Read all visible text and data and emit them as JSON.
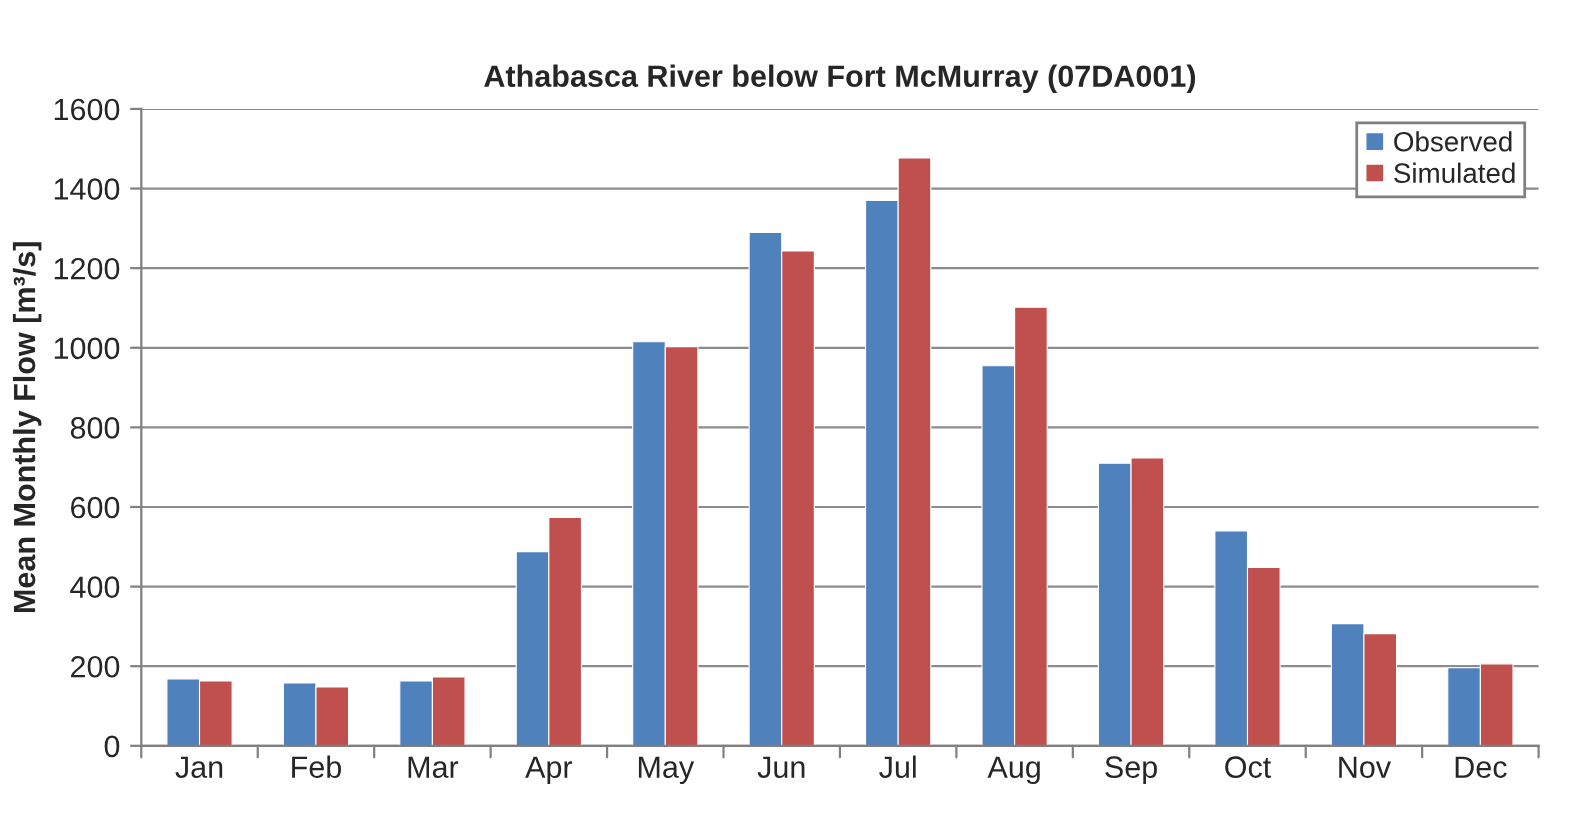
{
  "chart_data": {
    "type": "bar",
    "title": "Athabasca River below Fort McMurray (07DA001)",
    "ylabel": "Mean Monthly Flow [m³/s]",
    "categories": [
      "Jan",
      "Feb",
      "Mar",
      "Apr",
      "May",
      "Jun",
      "Jul",
      "Aug",
      "Sep",
      "Oct",
      "Nov",
      "Dec"
    ],
    "series": [
      {
        "name": "Observed",
        "color": "#4f81bd",
        "values": [
          168,
          158,
          163,
          488,
          1015,
          1290,
          1370,
          955,
          710,
          540,
          307,
          196
        ]
      },
      {
        "name": "Simulated",
        "color": "#c0504d",
        "values": [
          163,
          148,
          173,
          574,
          1003,
          1243,
          1477,
          1102,
          723,
          448,
          282,
          206
        ]
      }
    ],
    "ylim": [
      0,
      1600
    ],
    "yticks": [
      0,
      200,
      400,
      600,
      800,
      1000,
      1200,
      1400,
      1600
    ],
    "grid": "y",
    "legend": "top right"
  }
}
